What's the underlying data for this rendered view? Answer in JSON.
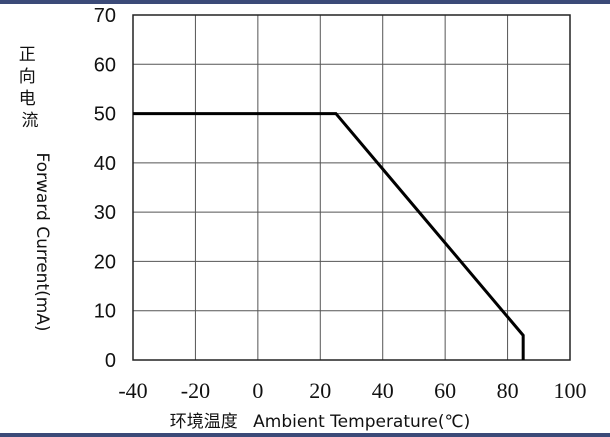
{
  "chart_data": {
    "type": "line",
    "title": "",
    "xlabel_cn": "环境温度",
    "xlabel_en": "Ambient Temperature(℃)",
    "ylabel_cn": "正向电流",
    "ylabel_en": "Forward Current(mA)",
    "xlim": [
      -40,
      100
    ],
    "ylim": [
      0,
      70
    ],
    "x_ticks": [
      "-40",
      "-20",
      "0",
      "20",
      "40",
      "60",
      "80",
      "100"
    ],
    "y_ticks": [
      "0",
      "10",
      "20",
      "30",
      "40",
      "50",
      "60",
      "70"
    ],
    "grid": true,
    "series": [
      {
        "x": [
          -40,
          25,
          85,
          85
        ],
        "y": [
          50,
          50,
          5,
          0
        ]
      }
    ]
  },
  "colors": {
    "accent_bar": "#3b4a78",
    "line": "#000000",
    "grid": "#555555"
  }
}
